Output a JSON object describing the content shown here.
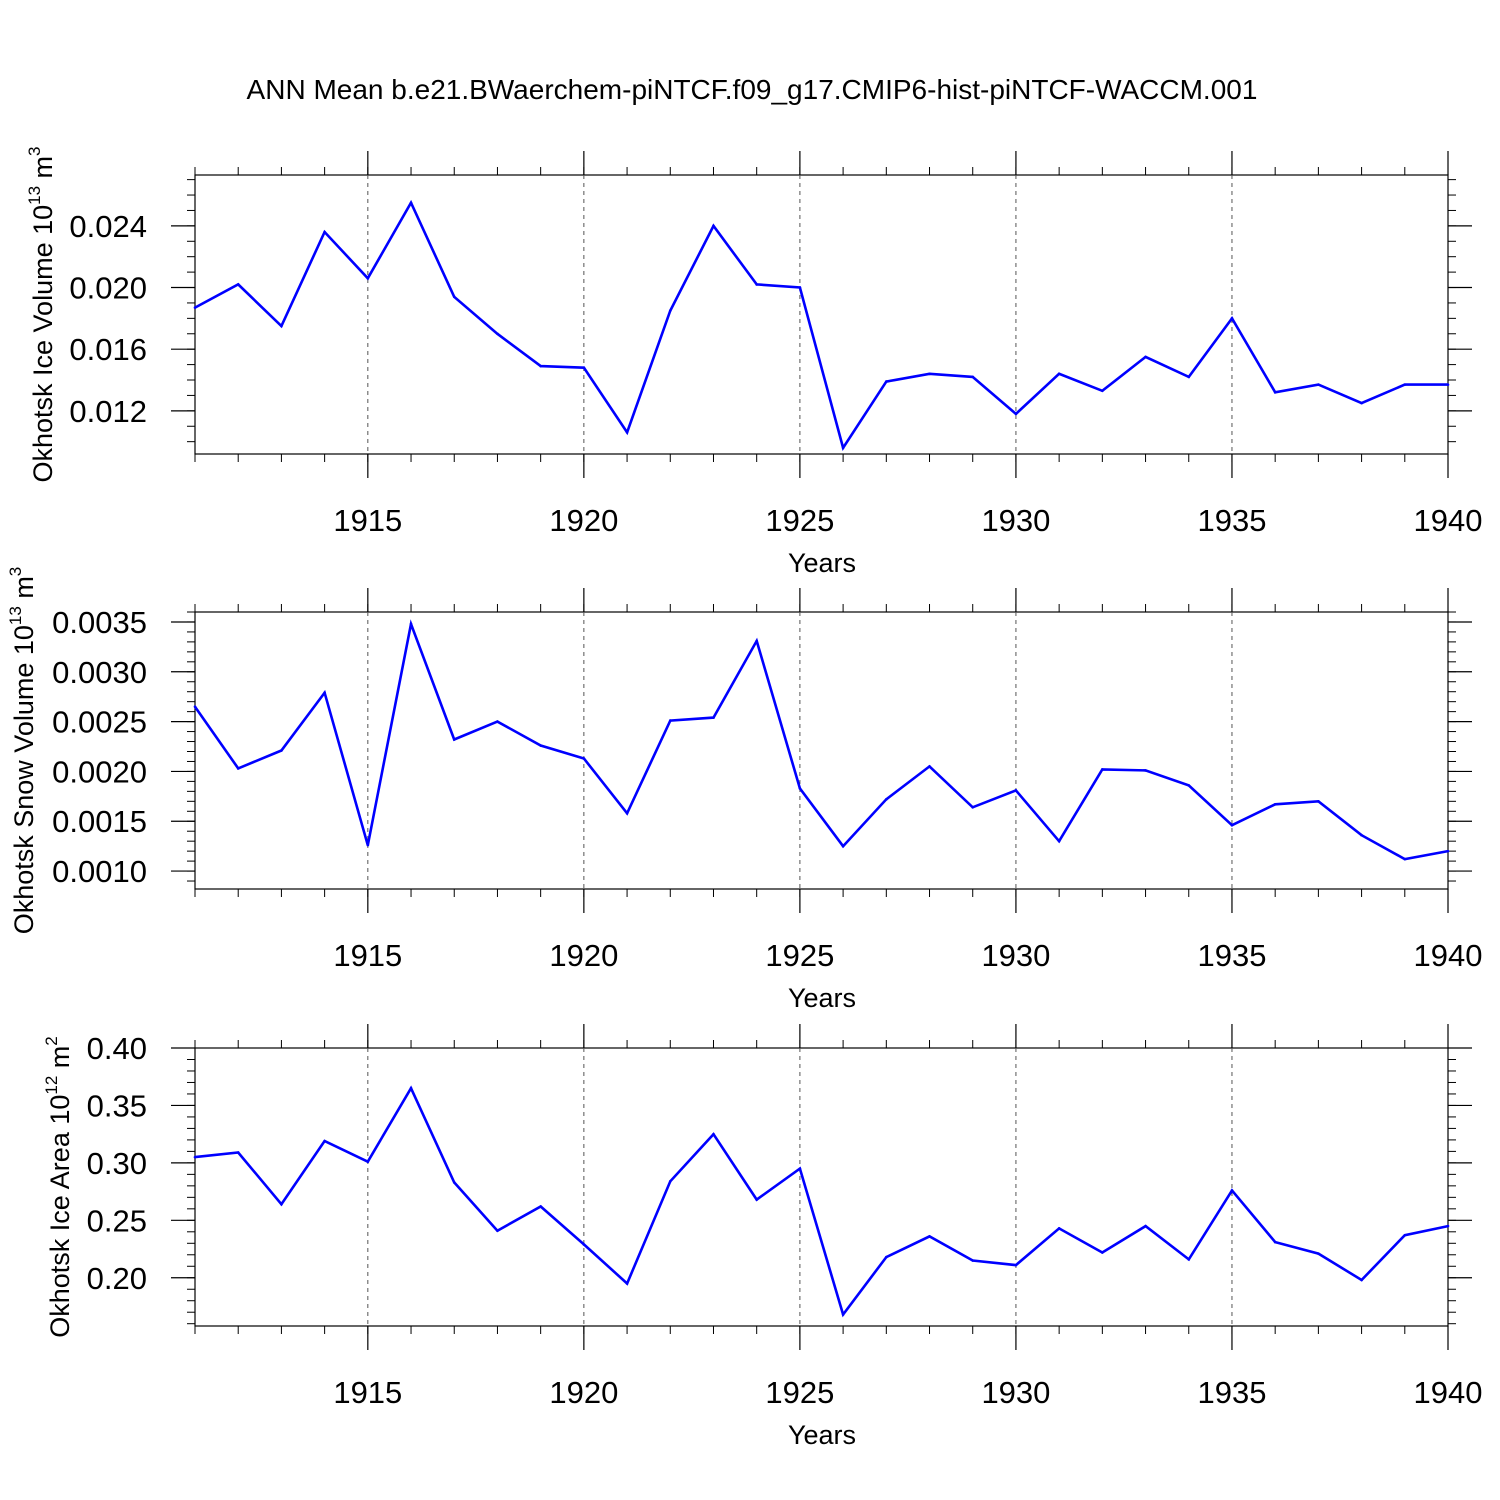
{
  "title": "ANN Mean b.e21.BWaerchem-piNTCF.f09_g17.CMIP6-hist-piNTCF-WACCM.001",
  "chart_data": [
    {
      "type": "line",
      "ylabel": {
        "base": "Okhotsk Ice Volume 10",
        "exp": "13",
        "unit": " m",
        "unit_exp": "3"
      },
      "xlabel": "Years",
      "xlim": [
        1911,
        1940
      ],
      "ylim": [
        0.0092,
        0.0273
      ],
      "xticks": [
        1915,
        1920,
        1925,
        1930,
        1935,
        1940
      ],
      "yticks": [
        0.012,
        0.016,
        0.02,
        0.024
      ],
      "ytick_labels": [
        "0.012",
        "0.016",
        "0.020",
        "0.024"
      ],
      "yminor": 0.001,
      "line_color": "#0000ff",
      "x": [
        1911,
        1912,
        1913,
        1914,
        1915,
        1916,
        1917,
        1918,
        1919,
        1920,
        1921,
        1922,
        1923,
        1924,
        1925,
        1926,
        1927,
        1928,
        1929,
        1930,
        1931,
        1932,
        1933,
        1934,
        1935,
        1936,
        1937,
        1938,
        1939,
        1940
      ],
      "values": [
        0.0187,
        0.0202,
        0.0175,
        0.0236,
        0.0206,
        0.0255,
        0.0194,
        0.017,
        0.0149,
        0.0148,
        0.0106,
        0.0185,
        0.024,
        0.0202,
        0.02,
        0.0096,
        0.0139,
        0.0144,
        0.0142,
        0.0118,
        0.0144,
        0.0133,
        0.0155,
        0.0142,
        0.018,
        0.0132,
        0.0137,
        0.0125,
        0.0137,
        0.0137
      ]
    },
    {
      "type": "line",
      "ylabel": {
        "base": "Okhotsk Snow Volume 10",
        "exp": "13",
        "unit": " m",
        "unit_exp": "3"
      },
      "xlabel": "Years",
      "xlim": [
        1911,
        1940
      ],
      "ylim": [
        0.00082,
        0.0036
      ],
      "xticks": [
        1915,
        1920,
        1925,
        1930,
        1935,
        1940
      ],
      "yticks": [
        0.001,
        0.0015,
        0.002,
        0.0025,
        0.003,
        0.0035
      ],
      "ytick_labels": [
        "0.0010",
        "0.0015",
        "0.0020",
        "0.0025",
        "0.0030",
        "0.0035"
      ],
      "yminor": 0.0001,
      "line_color": "#0000ff",
      "x": [
        1911,
        1912,
        1913,
        1914,
        1915,
        1916,
        1917,
        1918,
        1919,
        1920,
        1921,
        1922,
        1923,
        1924,
        1925,
        1926,
        1927,
        1928,
        1929,
        1930,
        1931,
        1932,
        1933,
        1934,
        1935,
        1936,
        1937,
        1938,
        1939,
        1940
      ],
      "values": [
        0.00265,
        0.00203,
        0.00221,
        0.00279,
        0.00126,
        0.00348,
        0.00232,
        0.0025,
        0.00226,
        0.00213,
        0.00158,
        0.00251,
        0.00254,
        0.00331,
        0.00183,
        0.00125,
        0.00172,
        0.00205,
        0.00164,
        0.00181,
        0.0013,
        0.00202,
        0.00201,
        0.00186,
        0.00146,
        0.00167,
        0.0017,
        0.00136,
        0.00112,
        0.0012
      ]
    },
    {
      "type": "line",
      "ylabel": {
        "base": "Okhotsk Ice Area 10",
        "exp": "12",
        "unit": " m",
        "unit_exp": "2"
      },
      "xlabel": "Years",
      "xlim": [
        1911,
        1940
      ],
      "ylim": [
        0.158,
        0.4
      ],
      "xticks": [
        1915,
        1920,
        1925,
        1930,
        1935,
        1940
      ],
      "yticks": [
        0.2,
        0.25,
        0.3,
        0.35,
        0.4
      ],
      "ytick_labels": [
        "0.20",
        "0.25",
        "0.30",
        "0.35",
        "0.40"
      ],
      "yminor": 0.01,
      "line_color": "#0000ff",
      "x": [
        1911,
        1912,
        1913,
        1914,
        1915,
        1916,
        1917,
        1918,
        1919,
        1920,
        1921,
        1922,
        1923,
        1924,
        1925,
        1926,
        1927,
        1928,
        1929,
        1930,
        1931,
        1932,
        1933,
        1934,
        1935,
        1936,
        1937,
        1938,
        1939,
        1940
      ],
      "values": [
        0.305,
        0.309,
        0.264,
        0.319,
        0.301,
        0.365,
        0.283,
        0.241,
        0.262,
        0.229,
        0.195,
        0.284,
        0.325,
        0.268,
        0.295,
        0.168,
        0.218,
        0.236,
        0.215,
        0.211,
        0.243,
        0.222,
        0.245,
        0.216,
        0.276,
        0.231,
        0.221,
        0.198,
        0.237,
        0.245
      ]
    }
  ]
}
